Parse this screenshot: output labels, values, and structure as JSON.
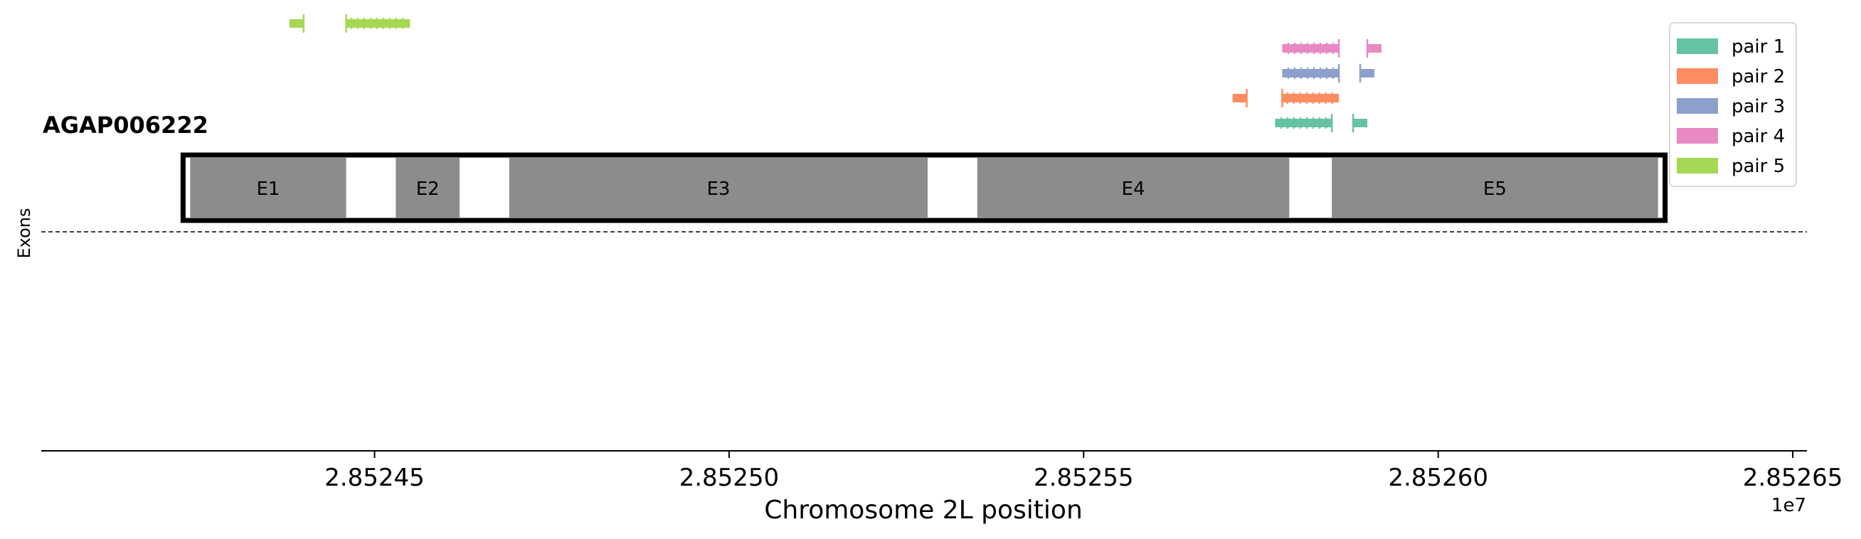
{
  "chart_data": {
    "type": "gene-track",
    "title": "AGAP006222",
    "xlabel": "Chromosome 2L position",
    "ylabel": "Exons",
    "x_offset_label": "1e7",
    "xlim": [
      2852403,
      2852652
    ],
    "x_ticks": [
      2852450,
      2852500,
      2852550,
      2852600,
      2852650
    ],
    "x_tick_labels": [
      "2.85245",
      "2.85250",
      "2.85255",
      "2.85260",
      "2.85265"
    ],
    "gene": {
      "start": 2852423,
      "end": 2852632
    },
    "exons": [
      {
        "label": "E1",
        "start": 2852424,
        "end": 2852446
      },
      {
        "label": "E2",
        "start": 2852453,
        "end": 2852462
      },
      {
        "label": "E3",
        "start": 2852469,
        "end": 2852528
      },
      {
        "label": "E4",
        "start": 2852535,
        "end": 2852579
      },
      {
        "label": "E5",
        "start": 2852585,
        "end": 2852631
      }
    ],
    "primer_pairs": [
      {
        "name": "pair 1",
        "color": "#66c2a5",
        "forward": {
          "start": 2852577,
          "end": 2852585
        },
        "reverse": {
          "start": 2852588,
          "end": 2852590
        }
      },
      {
        "name": "pair 2",
        "color": "#fc8d62",
        "forward": {
          "start": 2852571,
          "end": 2852573
        },
        "reverse": {
          "start": 2852578,
          "end": 2852586
        }
      },
      {
        "name": "pair 3",
        "color": "#8da0cb",
        "forward": {
          "start": 2852578,
          "end": 2852586
        },
        "reverse": {
          "start": 2852589,
          "end": 2852591
        }
      },
      {
        "name": "pair 4",
        "color": "#e78ac3",
        "forward": {
          "start": 2852578,
          "end": 2852586
        },
        "reverse": {
          "start": 2852590,
          "end": 2852592
        }
      },
      {
        "name": "pair 5",
        "color": "#a6d854",
        "forward": {
          "start": 2852438,
          "end": 2852440
        },
        "reverse": {
          "start": 2852446,
          "end": 2852455
        }
      }
    ],
    "legend_position": "top-right"
  }
}
